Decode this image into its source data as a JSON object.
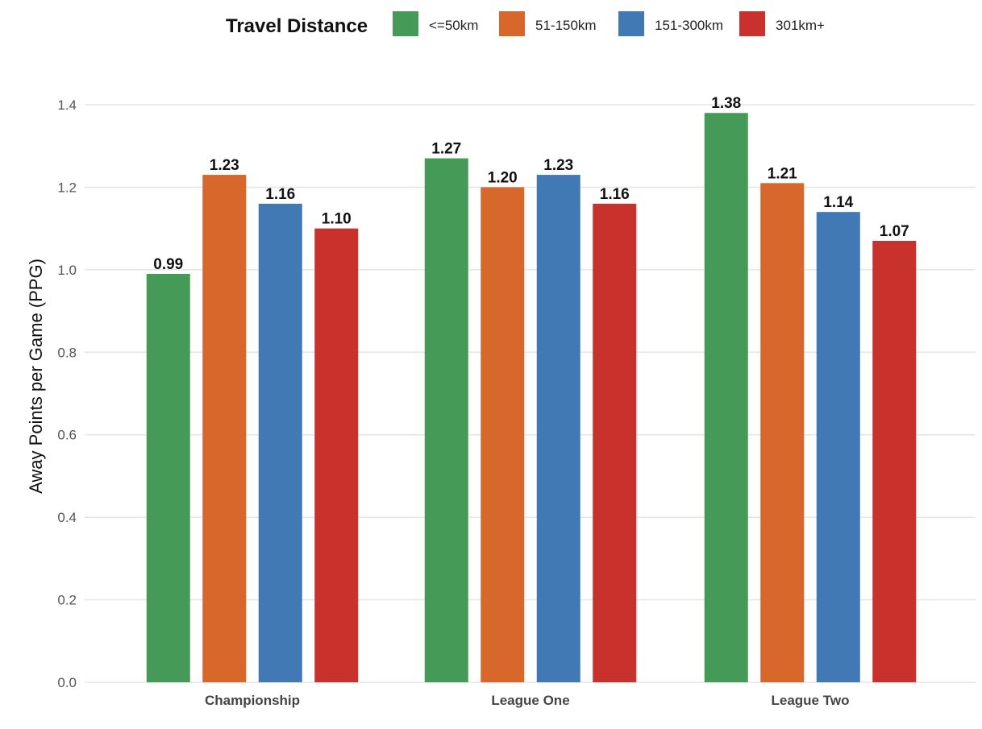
{
  "chart_data": {
    "type": "bar",
    "title": "",
    "xlabel": "",
    "ylabel": "Away Points per Game (PPG)",
    "ylim": [
      0,
      1.4
    ],
    "yticks": [
      0.0,
      0.2,
      0.4,
      0.6,
      0.8,
      1.0,
      1.2,
      1.4
    ],
    "ytick_labels": [
      "0.0",
      "0.2",
      "0.4",
      "0.6",
      "0.8",
      "1.0",
      "1.2",
      "1.4"
    ],
    "grid": true,
    "legend": {
      "title": "Travel Distance",
      "placement": "top"
    },
    "categories": [
      "Championship",
      "League One",
      "League Two"
    ],
    "series": [
      {
        "name": "<=50km",
        "color": "#459a57",
        "values": [
          0.99,
          1.27,
          1.38
        ],
        "labels": [
          "0.99",
          "1.27",
          "1.38"
        ]
      },
      {
        "name": "51-150km",
        "color": "#d8672b",
        "values": [
          1.23,
          1.2,
          1.21
        ],
        "labels": [
          "1.23",
          "1.20",
          "1.21"
        ]
      },
      {
        "name": "151-300km",
        "color": "#4079b3",
        "values": [
          1.16,
          1.23,
          1.14
        ],
        "labels": [
          "1.16",
          "1.23",
          "1.14"
        ]
      },
      {
        "name": "301km+",
        "color": "#c8312c",
        "values": [
          1.1,
          1.16,
          1.07
        ],
        "labels": [
          "1.10",
          "1.16",
          "1.07"
        ]
      }
    ]
  }
}
